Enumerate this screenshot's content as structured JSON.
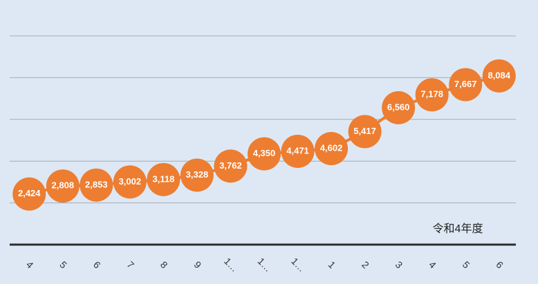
{
  "chart_data": {
    "type": "line",
    "categories": [
      "4",
      "5",
      "6",
      "7",
      "8",
      "9",
      "1…",
      "1…",
      "1…",
      "1",
      "2",
      "3",
      "4",
      "5",
      "6"
    ],
    "values": [
      2424,
      2808,
      2853,
      3002,
      3118,
      3328,
      3762,
      4350,
      4471,
      4602,
      5417,
      6560,
      7178,
      7667,
      8084
    ],
    "value_labels": [
      "2,424",
      "2,808",
      "2,853",
      "3,002",
      "3,118",
      "3,328",
      "3,762",
      "4,350",
      "4,471",
      "4,602",
      "5,417",
      "6,560",
      "7,178",
      "7,667",
      "8,084"
    ],
    "color": "#ed7d31",
    "ylim": [
      0,
      10000
    ],
    "yticks": [
      0,
      2000,
      4000,
      6000,
      8000,
      10000
    ],
    "grid": true,
    "annotation": "令和4年度"
  }
}
